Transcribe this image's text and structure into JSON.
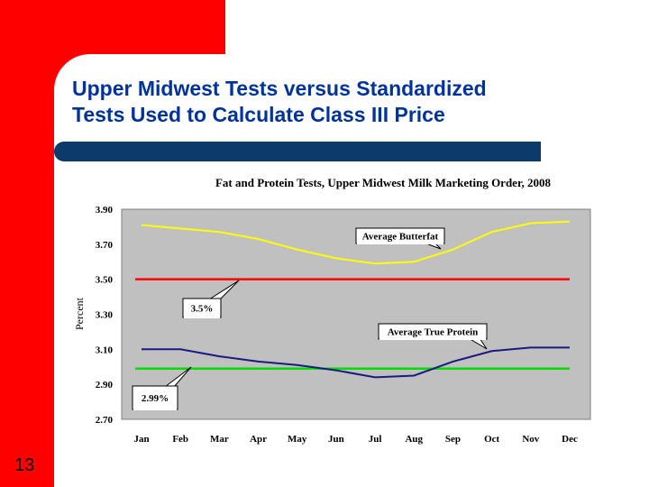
{
  "slide": {
    "title_line1": "Upper Midwest Tests versus Standardized",
    "title_line2": "Tests Used to Calculate Class III Price",
    "number": "13"
  },
  "colors": {
    "accent_red": "#ff0000",
    "title_blue": "#003399",
    "bar_navy": "#0b3a6b",
    "plot_bg": "#c0c0c0",
    "butterfat": "#ffff00",
    "protein": "#1a1a80",
    "line_35": "#ff0000",
    "line_299": "#00dd00"
  },
  "chart_data": {
    "type": "line",
    "title": "Fat and Protein Tests, Upper Midwest Milk Marketing Order, 2008",
    "ylabel": "Percent",
    "xlabel": "",
    "ylim": [
      2.7,
      3.9
    ],
    "yticks": [
      "3.90",
      "3.70",
      "3.50",
      "3.30",
      "3.10",
      "2.90",
      "2.70"
    ],
    "categories": [
      "Jan",
      "Feb",
      "Mar",
      "Apr",
      "May",
      "Jun",
      "Jul",
      "Aug",
      "Sep",
      "Oct",
      "Nov",
      "Dec"
    ],
    "series": [
      {
        "name": "Average Butterfat",
        "values": [
          3.81,
          3.79,
          3.77,
          3.73,
          3.67,
          3.62,
          3.59,
          3.6,
          3.67,
          3.77,
          3.82,
          3.83
        ]
      },
      {
        "name": "Average True Protein",
        "values": [
          3.1,
          3.1,
          3.06,
          3.03,
          3.01,
          2.98,
          2.94,
          2.95,
          3.03,
          3.09,
          3.11,
          3.11
        ]
      }
    ],
    "reference_lines": [
      {
        "label": "3.5%",
        "value": 3.5
      },
      {
        "label": "2.99%",
        "value": 2.99
      }
    ]
  }
}
